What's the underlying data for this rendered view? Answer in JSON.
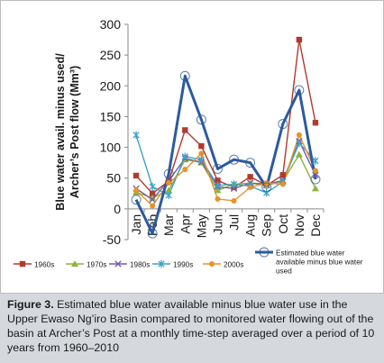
{
  "chart_data": {
    "type": "line",
    "ylabel": "Blue water avail. minus used/ Archer’s Post flow (Mm³)",
    "ylim": [
      -50,
      300
    ],
    "yticks": [
      -50,
      0,
      50,
      100,
      150,
      200,
      250,
      300
    ],
    "grid": false,
    "legend_position": "bottom",
    "categories": [
      "Jan",
      "Feb",
      "Mar",
      "Apr",
      "May",
      "Jun",
      "Jul",
      "Aug",
      "Sep",
      "Oct",
      "Nov",
      "Dec"
    ],
    "series": [
      {
        "name": "1960s",
        "color": "#b03a2e",
        "marker": "square",
        "values": [
          54,
          25,
          45,
          128,
          102,
          46,
          35,
          52,
          38,
          55,
          275,
          140
        ]
      },
      {
        "name": "1970s",
        "color": "#8cb43c",
        "marker": "triangle",
        "values": [
          27,
          18,
          30,
          80,
          75,
          30,
          40,
          42,
          38,
          45,
          88,
          33
        ]
      },
      {
        "name": "1980s",
        "color": "#7a5aa8",
        "marker": "x",
        "values": [
          33,
          15,
          46,
          82,
          76,
          36,
          33,
          42,
          40,
          46,
          110,
          55
        ]
      },
      {
        "name": "1990s",
        "color": "#3aa3c8",
        "marker": "star",
        "values": [
          120,
          36,
          22,
          85,
          80,
          38,
          40,
          37,
          26,
          44,
          107,
          78
        ]
      },
      {
        "name": "2000s",
        "color": "#e8922a",
        "marker": "circle",
        "values": [
          30,
          5,
          42,
          64,
          90,
          16,
          13,
          35,
          42,
          40,
          120,
          62
        ]
      },
      {
        "name": "Estimated blue water available minus blue water used",
        "color": "#2c5a9e",
        "marker": "hollow-circle",
        "bold": true,
        "values": [
          15,
          -40,
          57,
          216,
          145,
          65,
          80,
          75,
          35,
          138,
          193,
          48
        ]
      }
    ]
  },
  "caption": {
    "label": "Figure 3.",
    "text": " Estimated blue water available minus blue water use in the Upper Ewaso Ng’iro Basin compared to monitored water flowing out of the basin at Archer’s Post at a monthly time-step averaged over a period of 10 years from 1960–2010"
  }
}
